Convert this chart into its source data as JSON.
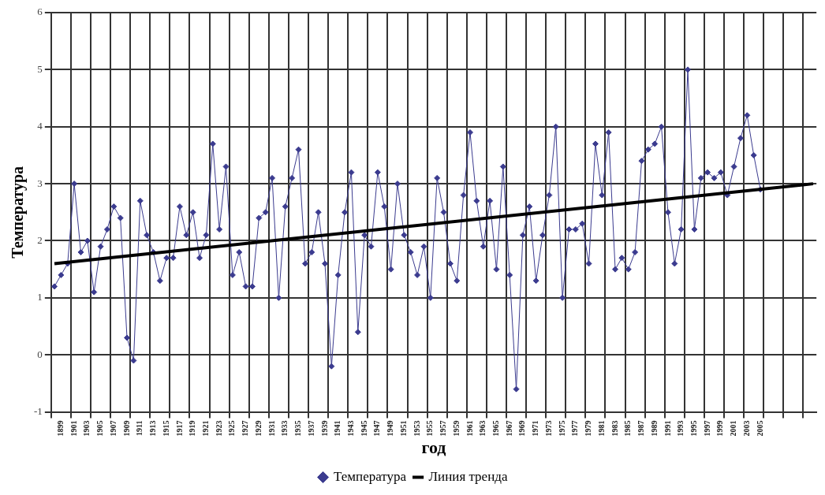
{
  "chart_data": {
    "type": "line",
    "xlabel": "год",
    "ylabel": "Температура",
    "categories": [
      null,
      "1899",
      null,
      "1901",
      null,
      "1903",
      null,
      "1905",
      null,
      "1907",
      null,
      "1909",
      null,
      "1911",
      null,
      "1913",
      null,
      "1915",
      null,
      "1917",
      null,
      "1919",
      null,
      "1921",
      null,
      "1923",
      null,
      "1925",
      null,
      "1927",
      null,
      "1929",
      null,
      "1931",
      null,
      "1933",
      null,
      "1935",
      null,
      "1937",
      null,
      "1939",
      null,
      "1941",
      null,
      "1943",
      null,
      "1945",
      null,
      "1947",
      null,
      "1949",
      null,
      "1951",
      null,
      "1953",
      null,
      "1955",
      null,
      "1957",
      null,
      "1959",
      null,
      "1961",
      null,
      "1963",
      null,
      "1965",
      null,
      "1967",
      null,
      "1969",
      null,
      "1971",
      null,
      "1973",
      null,
      "1975",
      null,
      "1977",
      null,
      "1979",
      null,
      "1981",
      null,
      "1983",
      null,
      "1985",
      null,
      "1987",
      null,
      "1989",
      null,
      "1991",
      null,
      "1993",
      null,
      "1995",
      null,
      "1997",
      null,
      "1999",
      null,
      "2001",
      null,
      "2003",
      null,
      "2005",
      null,
      null,
      null,
      null,
      null,
      null,
      null,
      null
    ],
    "series": [
      {
        "name": "Температура",
        "color": "#3b3b8f",
        "marker": "diamond",
        "values": [
          1.2,
          1.4,
          1.6,
          3.0,
          1.8,
          2.0,
          1.1,
          1.9,
          2.2,
          2.6,
          2.4,
          0.3,
          -0.1,
          2.7,
          2.1,
          1.8,
          1.3,
          1.7,
          1.7,
          2.6,
          2.1,
          2.5,
          1.7,
          2.1,
          3.7,
          2.2,
          3.3,
          1.4,
          1.8,
          1.2,
          1.2,
          2.4,
          2.5,
          3.1,
          1.0,
          2.6,
          3.1,
          3.6,
          1.6,
          1.8,
          2.5,
          1.6,
          -0.2,
          1.4,
          2.5,
          3.2,
          0.4,
          2.1,
          1.9,
          3.2,
          2.6,
          1.5,
          3.0,
          2.1,
          1.8,
          1.4,
          1.9,
          1.0,
          3.1,
          2.5,
          1.6,
          1.3,
          2.8,
          3.9,
          2.7,
          1.9,
          2.7,
          1.5,
          3.3,
          1.4,
          -0.6,
          2.1,
          2.6,
          1.3,
          2.1,
          2.8,
          4.0,
          1.0,
          2.2,
          2.2,
          2.3,
          1.6,
          3.7,
          2.8,
          3.9,
          1.5,
          1.7,
          1.5,
          1.8,
          3.4,
          3.6,
          3.7,
          4.0,
          2.5,
          1.6,
          2.2,
          5.0,
          2.2,
          3.1,
          3.2,
          3.1,
          3.2,
          2.8,
          3.3,
          3.8,
          4.2,
          3.5,
          2.9,
          null,
          null,
          null,
          null,
          null,
          null,
          null,
          null
        ]
      },
      {
        "name": "Линия тренда",
        "type": "line",
        "color": "#000000",
        "marker": "none",
        "values": [
          1.6,
          null,
          null,
          null,
          null,
          null,
          null,
          null,
          null,
          null,
          null,
          null,
          null,
          null,
          null,
          null,
          null,
          null,
          null,
          null,
          null,
          null,
          null,
          null,
          null,
          null,
          null,
          null,
          null,
          null,
          null,
          null,
          null,
          null,
          null,
          null,
          null,
          null,
          null,
          null,
          null,
          null,
          null,
          null,
          null,
          null,
          null,
          null,
          null,
          null,
          null,
          null,
          null,
          null,
          null,
          null,
          null,
          null,
          null,
          null,
          null,
          null,
          null,
          null,
          null,
          null,
          null,
          null,
          null,
          null,
          null,
          null,
          null,
          null,
          null,
          null,
          null,
          null,
          null,
          null,
          null,
          null,
          null,
          null,
          null,
          null,
          null,
          null,
          null,
          null,
          null,
          null,
          null,
          null,
          null,
          null,
          null,
          null,
          null,
          null,
          null,
          null,
          null,
          null,
          null,
          null,
          null,
          null,
          null,
          null,
          null,
          null,
          null,
          null,
          null,
          3.0
        ]
      }
    ],
    "ylim": [
      -1,
      6
    ],
    "yticks": [
      -1,
      0,
      1,
      2,
      3,
      4,
      5,
      6
    ],
    "grid": true,
    "legend": "bottom"
  }
}
